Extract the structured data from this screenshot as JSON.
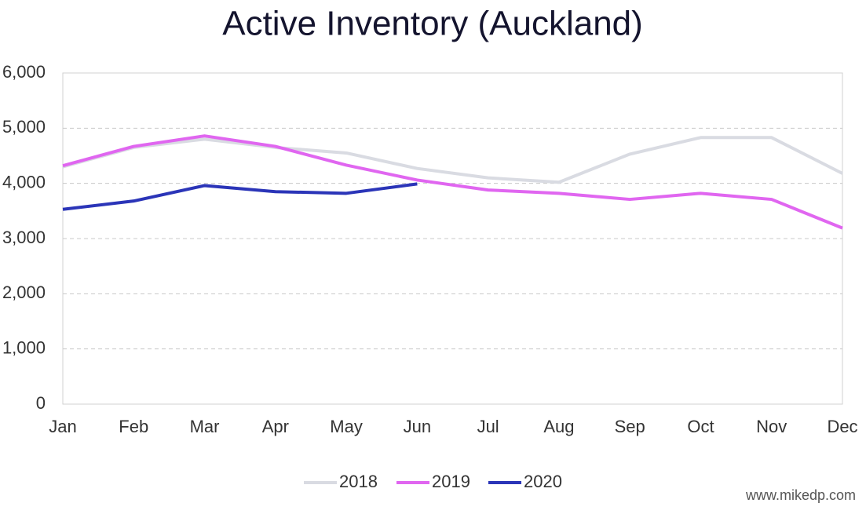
{
  "chart_data": {
    "type": "line",
    "title": "Active Inventory (Auckland)",
    "categories": [
      "Jan",
      "Feb",
      "Mar",
      "Apr",
      "May",
      "Jun",
      "Jul",
      "Aug",
      "Sep",
      "Oct",
      "Nov",
      "Dec"
    ],
    "series": [
      {
        "name": "2018",
        "color": "#d9dbe2",
        "values": [
          4300,
          4650,
          4800,
          4650,
          4550,
          4270,
          4100,
          4020,
          4530,
          4830,
          4830,
          4180
        ]
      },
      {
        "name": "2019",
        "color": "#e066f0",
        "values": [
          4320,
          4670,
          4860,
          4670,
          4330,
          4060,
          3880,
          3820,
          3710,
          3820,
          3710,
          3190
        ]
      },
      {
        "name": "2020",
        "color": "#2b35b8",
        "values": [
          3530,
          3680,
          3960,
          3850,
          3820,
          3990,
          null,
          null,
          null,
          null,
          null,
          null
        ]
      }
    ],
    "ylim": [
      0,
      6000
    ],
    "yticks": [
      0,
      {
        "value": 1000,
        "label": "1,000"
      },
      {
        "value": 2000,
        "label": "2,000"
      },
      {
        "value": 3000,
        "label": "3,000"
      },
      {
        "value": 4000,
        "label": "4,000"
      },
      {
        "value": 5000,
        "label": "5,000"
      },
      {
        "value": 6000,
        "label": "6,000"
      }
    ],
    "grid": true,
    "legend": "bottom",
    "annotation": "www.mikedp.com"
  }
}
